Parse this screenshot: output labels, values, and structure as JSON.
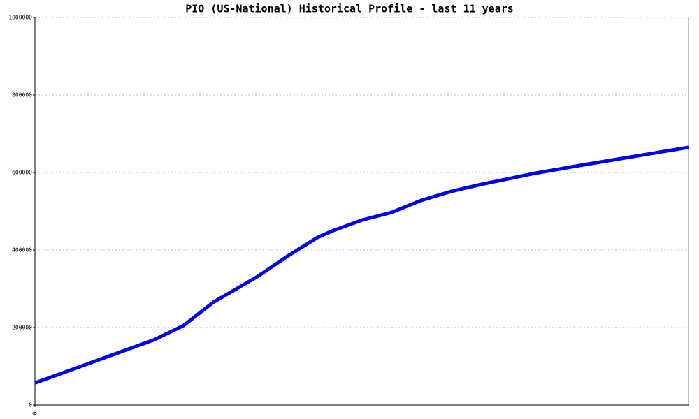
{
  "chart_data": {
    "type": "line",
    "title": "PIO (US-National) Historical Profile - last 11 years",
    "x": [
      0,
      24,
      30,
      36,
      45,
      51,
      57,
      60,
      66,
      72,
      78,
      84,
      90,
      101,
      110,
      132
    ],
    "series": [
      {
        "color": "#0000ee",
        "values": [
          57000,
          168000,
          205000,
          265000,
          332000,
          384000,
          432000,
          449000,
          477000,
          497000,
          528000,
          551000,
          569000,
          598000,
          618000,
          665000
        ]
      }
    ],
    "xlim": [
      0,
      132
    ],
    "xticks": [
      0
    ],
    "ylim": [
      0,
      1000000
    ],
    "yticks": [
      0,
      200000,
      400000,
      600000,
      800000,
      1000000
    ],
    "grid": true
  }
}
